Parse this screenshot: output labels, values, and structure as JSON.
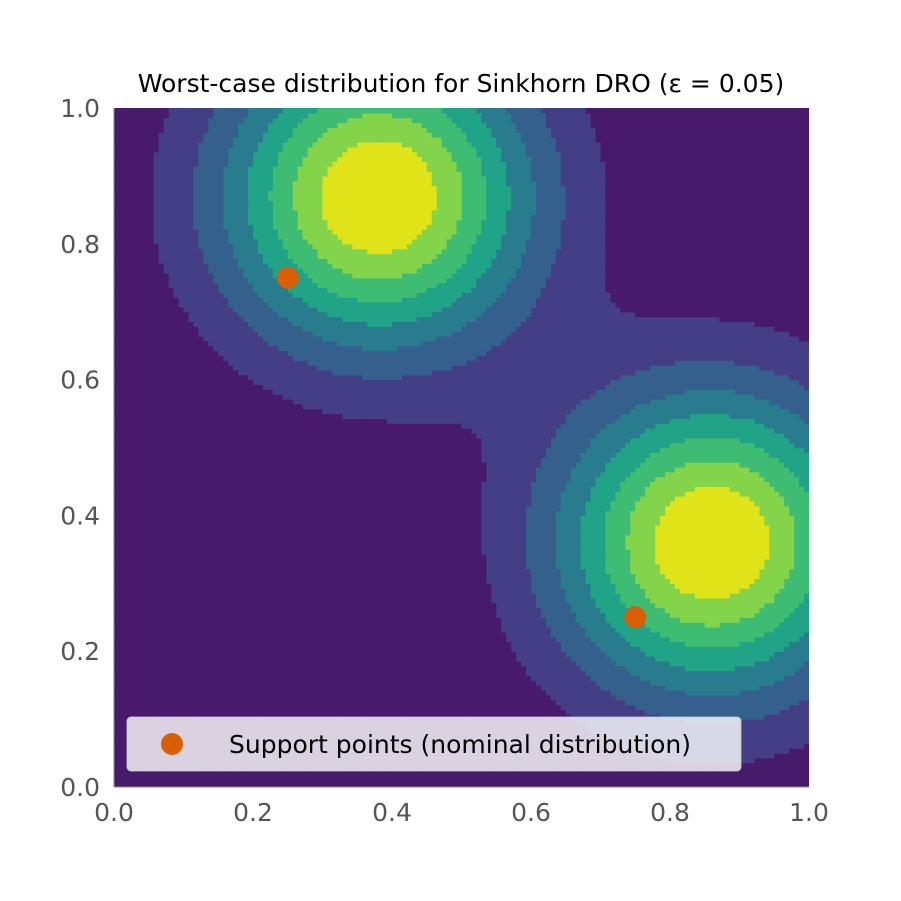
{
  "chart_data": {
    "type": "contour",
    "title": "Worst-case distribution for Sinkhorn DRO (ε = 0.05)",
    "xlabel": "",
    "ylabel": "",
    "xlim": [
      0.0,
      1.0
    ],
    "ylim": [
      0.0,
      1.0
    ],
    "x_ticks": [
      "0.0",
      "0.2",
      "0.4",
      "0.6",
      "0.8",
      "1.0"
    ],
    "y_ticks": [
      "0.0",
      "0.2",
      "0.4",
      "0.6",
      "0.8",
      "1.0"
    ],
    "grid": false,
    "colormap": "viridis",
    "contour_levels": 8,
    "density_peaks": [
      {
        "x": 0.38,
        "y": 0.87
      },
      {
        "x": 0.86,
        "y": 0.36
      }
    ],
    "series": [
      {
        "name": "Support points (nominal distribution)",
        "type": "scatter",
        "color": "#d95f02",
        "points": [
          {
            "x": 0.25,
            "y": 0.75
          },
          {
            "x": 0.75,
            "y": 0.25
          }
        ]
      }
    ],
    "legend": {
      "placement": "lower-center",
      "entries": [
        "Support points (nominal distribution)"
      ]
    }
  }
}
